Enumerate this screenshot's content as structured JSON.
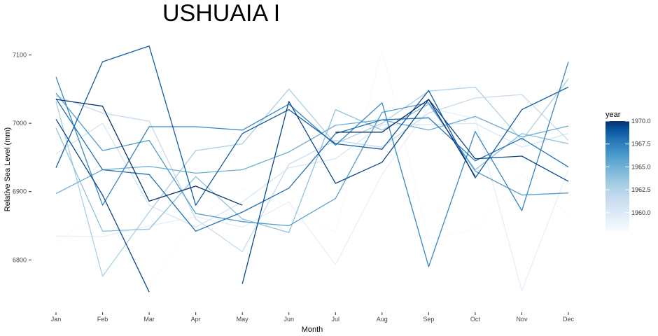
{
  "chart_data": {
    "type": "line",
    "title": "USHUAIA I",
    "xlabel": "Month",
    "ylabel": "Relative Sea Level (mm)",
    "categories": [
      "Jan",
      "Feb",
      "Mar",
      "Apr",
      "May",
      "Jun",
      "Jul",
      "Aug",
      "Sep",
      "Oct",
      "Nov",
      "Dec"
    ],
    "ylim": [
      6745,
      7120
    ],
    "yticks": [
      6800,
      6900,
      7000,
      7100
    ],
    "grid": false,
    "legend": {
      "title": "year",
      "position": "right",
      "min": 1958,
      "max": 1970,
      "ticks": [
        1960.0,
        1962.5,
        1965.0,
        1967.5,
        1970.0
      ],
      "tick_labels": [
        "1960.0",
        "1962.5",
        "1965.0",
        "1967.5",
        "1970.0"
      ],
      "colors": [
        "#f7fbff",
        "#deebf7",
        "#c6dbef",
        "#9ecae1",
        "#6baed6",
        "#4292c6",
        "#2171b5",
        "#08519c",
        "#08306b"
      ]
    },
    "series": [
      {
        "year": 1958,
        "values": [
          6825,
          6875,
          6760,
          6860,
          6905,
          6880,
          6840,
          7108,
          6830,
          6845,
          6925,
          6865
        ]
      },
      {
        "year": 1959,
        "values": [
          6835,
          6834,
          6850,
          6863,
          6848,
          6885,
          6793,
          6925,
          7022,
          7007,
          6755,
          6932
        ]
      },
      {
        "year": 1960,
        "values": [
          6955,
          7000,
          6880,
          6848,
          6885,
          6935,
          6948,
          6998,
          6998,
          7000,
          6965,
          6985
        ]
      },
      {
        "year": 1961,
        "values": [
          7040,
          7015,
          7003,
          6860,
          6812,
          6940,
          6975,
          6965,
          7015,
          7037,
          7042,
          6975
        ]
      },
      {
        "year": 1962,
        "values": [
          7032,
          6776,
          6870,
          6960,
          6970,
          7050,
          6970,
          7000,
          7047,
          7053,
          6975,
          7065
        ]
      },
      {
        "year": 1963,
        "values": [
          6993,
          6842,
          6845,
          6922,
          6860,
          6840,
          7020,
          6990,
          7028,
          6932,
          6985,
          6970
        ]
      },
      {
        "year": 1964,
        "values": [
          6897,
          6932,
          6937,
          6927,
          6932,
          6958,
          6997,
          7005,
          6990,
          7010,
          6980,
          6996
        ]
      },
      {
        "year": 1965,
        "values": [
          7044,
          6960,
          6975,
          6868,
          6856,
          6850,
          6890,
          7016,
          7030,
          6930,
          6895,
          6898
        ]
      },
      {
        "year": 1966,
        "values": [
          7068,
          6880,
          6995,
          6995,
          6990,
          7028,
          6968,
          7030,
          6790,
          6988,
          6872,
          7090
        ]
      },
      {
        "year": 1967,
        "values": [
          7036,
          6932,
          6925,
          6842,
          6870,
          6905,
          6985,
          7005,
          7008,
          6945,
          6978,
          6936
        ]
      },
      {
        "year": 1968,
        "values": [
          6935,
          7090,
          7113,
          6880,
          6985,
          7020,
          6970,
          6962,
          7048,
          6920,
          7020,
          7053
        ]
      },
      {
        "year": 1969,
        "values": [
          7006,
          6895,
          6753,
          null,
          6765,
          7032,
          6912,
          6943,
          7035,
          6948,
          6952,
          6915
        ]
      },
      {
        "year": 1970,
        "values": [
          7035,
          7025,
          6886,
          6908,
          6880,
          null,
          6987,
          6987,
          7035,
          6922,
          null,
          7012
        ]
      }
    ]
  }
}
